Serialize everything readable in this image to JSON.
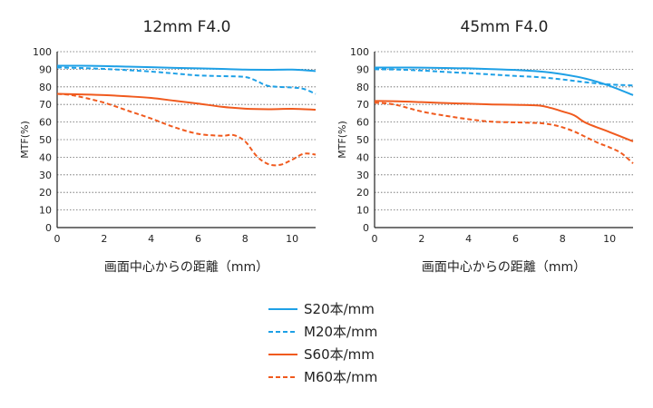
{
  "colors": {
    "blue": "#1ea0e6",
    "orange": "#f05a1e",
    "grid": "#666666",
    "axis": "#222222"
  },
  "legend": [
    {
      "label": "S20本/mm",
      "color": "#1ea0e6",
      "dash": false
    },
    {
      "label": "M20本/mm",
      "color": "#1ea0e6",
      "dash": true
    },
    {
      "label": "S60本/mm",
      "color": "#f05a1e",
      "dash": false
    },
    {
      "label": "M60本/mm",
      "color": "#f05a1e",
      "dash": true
    }
  ],
  "chart_data": [
    {
      "type": "line",
      "title": "12mm F4.0",
      "xlabel": "画面中心からの距離（mm）",
      "ylabel": "MTF(%)",
      "xlim": [
        0,
        11
      ],
      "ylim": [
        0,
        100
      ],
      "xticks": [
        "0",
        "2",
        "4",
        "6",
        "8",
        "10"
      ],
      "yticks": [
        "0",
        "10",
        "20",
        "30",
        "40",
        "50",
        "60",
        "70",
        "80",
        "90",
        "100"
      ],
      "grid": "horizontal-dotted",
      "series": [
        {
          "name": "S20本/mm",
          "x": [
            0,
            1,
            2,
            3,
            4,
            5,
            6,
            7,
            8,
            9,
            10,
            11
          ],
          "y": [
            92,
            92,
            91.8,
            91.5,
            91.2,
            90.8,
            90.5,
            90.2,
            89.8,
            89.7,
            89.8,
            89
          ]
        },
        {
          "name": "M20本/mm",
          "x": [
            0,
            1,
            2,
            3,
            4,
            5,
            6,
            7,
            8,
            8.5,
            9,
            10,
            10.5,
            11
          ],
          "y": [
            91,
            90.7,
            90.2,
            89.5,
            88.7,
            87.6,
            86.5,
            86.1,
            85.6,
            83.3,
            80.5,
            79.6,
            78.8,
            76
          ]
        },
        {
          "name": "S60本/mm",
          "x": [
            0,
            1,
            2,
            3,
            4,
            5,
            6,
            7,
            8,
            9,
            10,
            11
          ],
          "y": [
            76,
            75.7,
            75.3,
            74.6,
            73.7,
            72.1,
            70.5,
            68.7,
            67.6,
            67.3,
            67.5,
            67
          ]
        },
        {
          "name": "M60本/mm",
          "x": [
            0,
            0.5,
            1,
            2,
            3,
            4,
            5,
            6,
            7,
            7.5,
            8,
            8.5,
            9,
            9.5,
            10,
            10.5,
            11
          ],
          "y": [
            76,
            75.5,
            74.3,
            71,
            66.5,
            62,
            57,
            53.3,
            52.2,
            52.6,
            49,
            40.5,
            36,
            35.7,
            38.6,
            42,
            41.5
          ]
        }
      ]
    },
    {
      "type": "line",
      "title": "45mm F4.0",
      "xlabel": "画面中心からの距離（mm）",
      "ylabel": "MTF(%)",
      "xlim": [
        0,
        11
      ],
      "ylim": [
        0,
        100
      ],
      "xticks": [
        "0",
        "2",
        "4",
        "6",
        "8",
        "10"
      ],
      "yticks": [
        "0",
        "10",
        "20",
        "30",
        "40",
        "50",
        "60",
        "70",
        "80",
        "90",
        "100"
      ],
      "grid": "horizontal-dotted",
      "series": [
        {
          "name": "S20本/mm",
          "x": [
            0,
            1,
            2,
            3,
            4,
            5,
            6,
            7,
            8,
            9,
            10,
            11
          ],
          "y": [
            91,
            91,
            90.9,
            90.7,
            90.5,
            90.1,
            89.6,
            88.8,
            87.2,
            84.6,
            80.6,
            75.3
          ]
        },
        {
          "name": "M20本/mm",
          "x": [
            0,
            1,
            2,
            3,
            4,
            5,
            6,
            7,
            8,
            9,
            10,
            11
          ],
          "y": [
            90,
            89.8,
            89.3,
            88.5,
            87.8,
            87,
            86.2,
            85.5,
            84.2,
            82.6,
            81.4,
            80.8
          ]
        },
        {
          "name": "S60本/mm",
          "x": [
            0,
            1,
            2,
            3,
            4,
            5,
            6,
            7,
            7.5,
            8,
            8.5,
            9,
            10,
            11
          ],
          "y": [
            72,
            71.8,
            71.3,
            70.8,
            70.4,
            70,
            69.8,
            69.4,
            68,
            66,
            63.8,
            59.5,
            54.3,
            49
          ]
        },
        {
          "name": "M60本/mm",
          "x": [
            0,
            0.5,
            1,
            2,
            3,
            4,
            5,
            6,
            7,
            7.5,
            8,
            8.5,
            9,
            9.5,
            10,
            10.5,
            11
          ],
          "y": [
            71,
            70.6,
            69.5,
            66,
            63.6,
            61.6,
            60.2,
            59.8,
            59.4,
            58.6,
            57,
            54.6,
            51.4,
            48.2,
            45.6,
            42.3,
            36.5
          ]
        }
      ]
    }
  ]
}
